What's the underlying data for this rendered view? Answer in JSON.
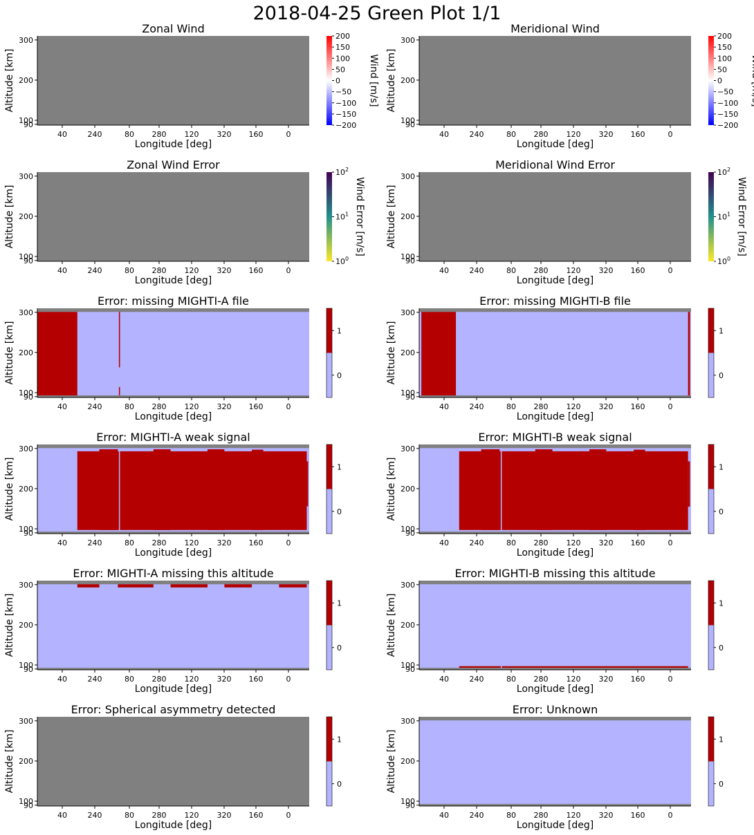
{
  "page": {
    "suptitle": "2018-04-25 Green Plot 1/1"
  },
  "colors": {
    "nodata": "#808080",
    "flag_off": "#b3b3ff",
    "flag_on": "#b40000",
    "wind_low": "#0000ff",
    "wind_mid": "#ffffff",
    "wind_high": "#ff0000",
    "err_low": "#fde725",
    "err_mid": "#21918c",
    "err_high": "#440154"
  },
  "chart_data": [
    {
      "id": "zonal-wind",
      "type": "heatmap",
      "title": "Zonal Wind",
      "xlabel": "Longitude [deg]",
      "ylabel": "Altitude [km]",
      "xticks": [
        "40",
        "240",
        "80",
        "280",
        "120",
        "320",
        "160",
        "0"
      ],
      "yticks": [
        "90",
        "100",
        "200",
        "300"
      ],
      "ylim": [
        88,
        310
      ],
      "colorbar": {
        "kind": "wind",
        "label": "Wind [m/s]",
        "range": [
          -200,
          200
        ],
        "ticks": [
          "200",
          "150",
          "100",
          "50",
          "0",
          "−50",
          "−100",
          "−150",
          "−200"
        ]
      },
      "state": "no data"
    },
    {
      "id": "meridional-wind",
      "type": "heatmap",
      "title": "Meridional Wind",
      "xlabel": "Longitude [deg]",
      "ylabel": "Altitude [km]",
      "xticks": [
        "40",
        "240",
        "80",
        "280",
        "120",
        "320",
        "160",
        "0"
      ],
      "yticks": [
        "90",
        "100",
        "200",
        "300"
      ],
      "ylim": [
        88,
        310
      ],
      "colorbar": {
        "kind": "wind",
        "label": "Wind [m/s]",
        "range": [
          -200,
          200
        ],
        "ticks": [
          "200",
          "150",
          "100",
          "50",
          "0",
          "−50",
          "−100",
          "−150",
          "−200"
        ]
      },
      "state": "no data"
    },
    {
      "id": "zonal-wind-error",
      "type": "heatmap",
      "title": "Zonal Wind Error",
      "xlabel": "Longitude [deg]",
      "ylabel": "Altitude [km]",
      "xticks": [
        "40",
        "240",
        "80",
        "280",
        "120",
        "320",
        "160",
        "0"
      ],
      "yticks": [
        "90",
        "100",
        "200",
        "300"
      ],
      "ylim": [
        88,
        310
      ],
      "colorbar": {
        "kind": "error",
        "label": "Wind Error [m/s]",
        "scale": "log",
        "range": [
          1,
          100
        ],
        "ticks": [
          {
            "base": "10",
            "exp": "2"
          },
          {
            "base": "10",
            "exp": "1"
          },
          {
            "base": "10",
            "exp": "0"
          }
        ]
      },
      "state": "no data"
    },
    {
      "id": "meridional-wind-error",
      "type": "heatmap",
      "title": "Meridional Wind Error",
      "xlabel": "Longitude [deg]",
      "ylabel": "Altitude [km]",
      "xticks": [
        "40",
        "240",
        "80",
        "280",
        "120",
        "320",
        "160",
        "0"
      ],
      "yticks": [
        "90",
        "100",
        "200",
        "300"
      ],
      "ylim": [
        88,
        310
      ],
      "colorbar": {
        "kind": "error",
        "label": "Wind Error [m/s]",
        "scale": "log",
        "range": [
          1,
          100
        ],
        "ticks": [
          {
            "base": "10",
            "exp": "2"
          },
          {
            "base": "10",
            "exp": "1"
          },
          {
            "base": "10",
            "exp": "0"
          }
        ]
      },
      "state": "no data"
    },
    {
      "id": "missing-a-file",
      "type": "heatmap",
      "title": "Error: missing MIGHTI-A file",
      "xlabel": "Longitude [deg]",
      "ylabel": "Altitude [km]",
      "xticks": [
        "40",
        "240",
        "80",
        "280",
        "120",
        "320",
        "160",
        "0"
      ],
      "yticks": [
        "90",
        "100",
        "200",
        "300"
      ],
      "ylim": [
        88,
        310
      ],
      "colorbar": {
        "kind": "flag",
        "range": [
          0,
          1
        ],
        "ticks": [
          "1",
          "0"
        ]
      },
      "valid_altitude_range": [
        93,
        301
      ],
      "flag_regions": [
        {
          "x0": 0,
          "x1": 0.147,
          "y0": 93,
          "y1": 301
        },
        {
          "x0": 0.3,
          "x1": 0.304,
          "y0": 163,
          "y1": 301
        },
        {
          "x0": 0.3,
          "x1": 0.304,
          "y0": 93,
          "y1": 114
        }
      ]
    },
    {
      "id": "missing-b-file",
      "type": "heatmap",
      "title": "Error: missing MIGHTI-B file",
      "xlabel": "Longitude [deg]",
      "ylabel": "Altitude [km]",
      "xticks": [
        "40",
        "240",
        "80",
        "280",
        "120",
        "320",
        "160",
        "0"
      ],
      "yticks": [
        "90",
        "100",
        "200",
        "300"
      ],
      "ylim": [
        88,
        310
      ],
      "colorbar": {
        "kind": "flag",
        "range": [
          0,
          1
        ],
        "ticks": [
          "1",
          "0"
        ]
      },
      "valid_altitude_range": [
        93,
        301
      ],
      "flag_regions": [
        {
          "x0": 0.008,
          "x1": 0.135,
          "y0": 93,
          "y1": 301
        },
        {
          "x0": 0.989,
          "x1": 0.996,
          "y0": 93,
          "y1": 301
        }
      ]
    },
    {
      "id": "weak-signal-a",
      "type": "heatmap",
      "title": "Error: MIGHTI-A weak signal",
      "xlabel": "Longitude [deg]",
      "ylabel": "Altitude [km]",
      "xticks": [
        "40",
        "240",
        "80",
        "280",
        "120",
        "320",
        "160",
        "0"
      ],
      "yticks": [
        "90",
        "100",
        "200",
        "300"
      ],
      "ylim": [
        88,
        310
      ],
      "colorbar": {
        "kind": "flag",
        "range": [
          0,
          1
        ],
        "ticks": [
          "1",
          "0"
        ]
      },
      "valid_altitude_range": [
        93,
        301
      ],
      "flag_regions": [
        {
          "x0": 0.147,
          "x1": 0.991,
          "y0": 97,
          "y1": 293
        },
        {
          "x0": 0.228,
          "x1": 0.296,
          "y0": 97,
          "y1": 298
        },
        {
          "x0": 0.427,
          "x1": 0.49,
          "y0": 97,
          "y1": 298
        },
        {
          "x0": 0.626,
          "x1": 0.688,
          "y0": 97,
          "y1": 298
        },
        {
          "x0": 0.789,
          "x1": 0.831,
          "y0": 97,
          "y1": 297
        },
        {
          "x0": 0.991,
          "x1": 0.996,
          "y0": 156,
          "y1": 268
        }
      ],
      "gaps": [
        {
          "x0": 0.3,
          "x1": 0.304,
          "y0": 93,
          "y1": 301
        }
      ]
    },
    {
      "id": "weak-signal-b",
      "type": "heatmap",
      "title": "Error: MIGHTI-B weak signal",
      "xlabel": "Longitude [deg]",
      "ylabel": "Altitude [km]",
      "xticks": [
        "40",
        "240",
        "80",
        "280",
        "120",
        "320",
        "160",
        "0"
      ],
      "yticks": [
        "90",
        "100",
        "200",
        "300"
      ],
      "ylim": [
        88,
        310
      ],
      "colorbar": {
        "kind": "flag",
        "range": [
          0,
          1
        ],
        "ticks": [
          "1",
          "0"
        ]
      },
      "valid_altitude_range": [
        93,
        301
      ],
      "flag_regions": [
        {
          "x0": 0.147,
          "x1": 0.989,
          "y0": 97,
          "y1": 293
        },
        {
          "x0": 0.228,
          "x1": 0.296,
          "y0": 97,
          "y1": 298
        },
        {
          "x0": 0.427,
          "x1": 0.49,
          "y0": 97,
          "y1": 298
        },
        {
          "x0": 0.626,
          "x1": 0.688,
          "y0": 97,
          "y1": 298
        },
        {
          "x0": 0.789,
          "x1": 0.831,
          "y0": 97,
          "y1": 297
        },
        {
          "x0": 0.989,
          "x1": 0.996,
          "y0": 155,
          "y1": 268
        }
      ],
      "gaps": [
        {
          "x0": 0.3,
          "x1": 0.304,
          "y0": 93,
          "y1": 301
        }
      ]
    },
    {
      "id": "missing-alt-a",
      "type": "heatmap",
      "title": "Error: MIGHTI-A missing this altitude",
      "xlabel": "Longitude [deg]",
      "ylabel": "Altitude [km]",
      "xticks": [
        "40",
        "240",
        "80",
        "280",
        "120",
        "320",
        "160",
        "0"
      ],
      "yticks": [
        "90",
        "100",
        "200",
        "300"
      ],
      "ylim": [
        88,
        310
      ],
      "colorbar": {
        "kind": "flag",
        "range": [
          0,
          1
        ],
        "ticks": [
          "1",
          "0"
        ]
      },
      "valid_altitude_range": [
        93,
        301
      ],
      "flag_regions": [
        {
          "x0": 0.147,
          "x1": 0.228,
          "y0": 293,
          "y1": 301
        },
        {
          "x0": 0.296,
          "x1": 0.427,
          "y0": 293,
          "y1": 301
        },
        {
          "x0": 0.49,
          "x1": 0.626,
          "y0": 293,
          "y1": 301
        },
        {
          "x0": 0.688,
          "x1": 0.789,
          "y0": 293,
          "y1": 301
        },
        {
          "x0": 0.889,
          "x1": 0.991,
          "y0": 293,
          "y1": 301
        }
      ]
    },
    {
      "id": "missing-alt-b",
      "type": "heatmap",
      "title": "Error: MIGHTI-B missing this altitude",
      "xlabel": "Longitude [deg]",
      "ylabel": "Altitude [km]",
      "xticks": [
        "40",
        "240",
        "80",
        "280",
        "120",
        "320",
        "160",
        "0"
      ],
      "yticks": [
        "90",
        "100",
        "200",
        "300"
      ],
      "ylim": [
        88,
        310
      ],
      "colorbar": {
        "kind": "flag",
        "range": [
          0,
          1
        ],
        "ticks": [
          "1",
          "0"
        ]
      },
      "valid_altitude_range": [
        93,
        301
      ],
      "flag_regions": [
        {
          "x0": 0.147,
          "x1": 0.989,
          "y0": 93,
          "y1": 97
        }
      ],
      "gaps": [
        {
          "x0": 0.3,
          "x1": 0.304,
          "y0": 93,
          "y1": 97
        }
      ]
    },
    {
      "id": "spherical-asymmetry",
      "type": "heatmap",
      "title": "Error: Spherical asymmetry detected",
      "xlabel": "Longitude [deg]",
      "ylabel": "Altitude [km]",
      "xticks": [
        "40",
        "240",
        "80",
        "280",
        "120",
        "320",
        "160",
        "0"
      ],
      "yticks": [
        "90",
        "100",
        "200",
        "300"
      ],
      "ylim": [
        88,
        310
      ],
      "colorbar": {
        "kind": "flag",
        "range": [
          0,
          1
        ],
        "ticks": [
          "1",
          "0"
        ]
      },
      "state": "no data"
    },
    {
      "id": "unknown",
      "type": "heatmap",
      "title": "Error: Unknown",
      "xlabel": "Longitude [deg]",
      "ylabel": "Altitude [km]",
      "xticks": [
        "40",
        "240",
        "80",
        "280",
        "120",
        "320",
        "160",
        "0"
      ],
      "yticks": [
        "90",
        "100",
        "200",
        "300"
      ],
      "ylim": [
        88,
        310
      ],
      "colorbar": {
        "kind": "flag",
        "range": [
          0,
          1
        ],
        "ticks": [
          "1",
          "0"
        ]
      },
      "valid_altitude_range": [
        93,
        301
      ],
      "flag_regions": []
    }
  ]
}
